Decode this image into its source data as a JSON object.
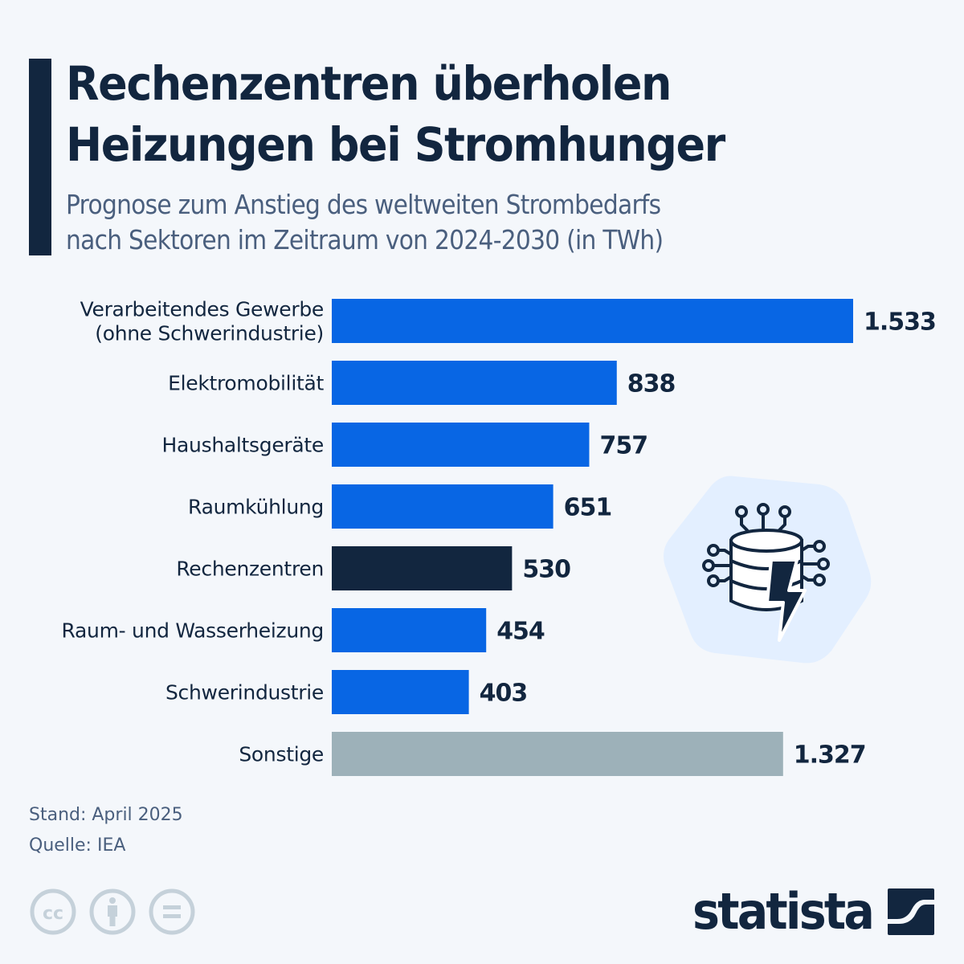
{
  "header": {
    "title_line1": "Rechenzentren überholen",
    "title_line2": "Heizungen bei Stromhunger",
    "subtitle_line1": "Prognose zum Anstieg des weltweiten Strombedarfs",
    "subtitle_line2": "nach Sektoren im Zeitraum von 2024-2030 (in TWh)"
  },
  "colors": {
    "background": "#f4f7fb",
    "primary_bar": "#0866e4",
    "highlight_bar": "#12263f",
    "other_bar": "#9db1b9",
    "text_dark": "#12263f",
    "text_muted": "#4a5f7e",
    "illustration_bg": "#e3efff",
    "cc_icon": "#c5d1da"
  },
  "chart_data": {
    "type": "bar",
    "orientation": "horizontal",
    "title": "Rechenzentren überholen Heizungen bei Stromhunger",
    "subtitle": "Prognose zum Anstieg des weltweiten Strombedarfs nach Sektoren im Zeitraum von 2024-2030 (in TWh)",
    "xlabel": "",
    "ylabel": "",
    "unit": "TWh",
    "xlim": [
      0,
      1533
    ],
    "grid": false,
    "legend": "none",
    "categories": [
      [
        "Verarbeitendes Gewerbe",
        "(ohne Schwerindustrie)"
      ],
      [
        "Elektromobilität"
      ],
      [
        "Haushaltsgeräte"
      ],
      [
        "Raumkühlung"
      ],
      [
        "Rechenzentren"
      ],
      [
        "Raum- und Wasserheizung"
      ],
      [
        "Schwerindustrie"
      ],
      [
        "Sonstige"
      ]
    ],
    "values": [
      1533,
      838,
      757,
      651,
      530,
      454,
      403,
      1327
    ],
    "value_labels": [
      "1.533",
      "838",
      "757",
      "651",
      "530",
      "454",
      "403",
      "1.327"
    ],
    "bar_styles": [
      "primary",
      "primary",
      "primary",
      "primary",
      "highlight",
      "primary",
      "primary",
      "other"
    ]
  },
  "illustration": {
    "icon": "data-center-lightning-icon"
  },
  "footer": {
    "stand": "Stand: April 2025",
    "source": "Quelle: IEA",
    "license_icons": [
      "cc-icon",
      "by-attribution-icon",
      "no-derivatives-icon"
    ],
    "logo_text": "statista"
  }
}
